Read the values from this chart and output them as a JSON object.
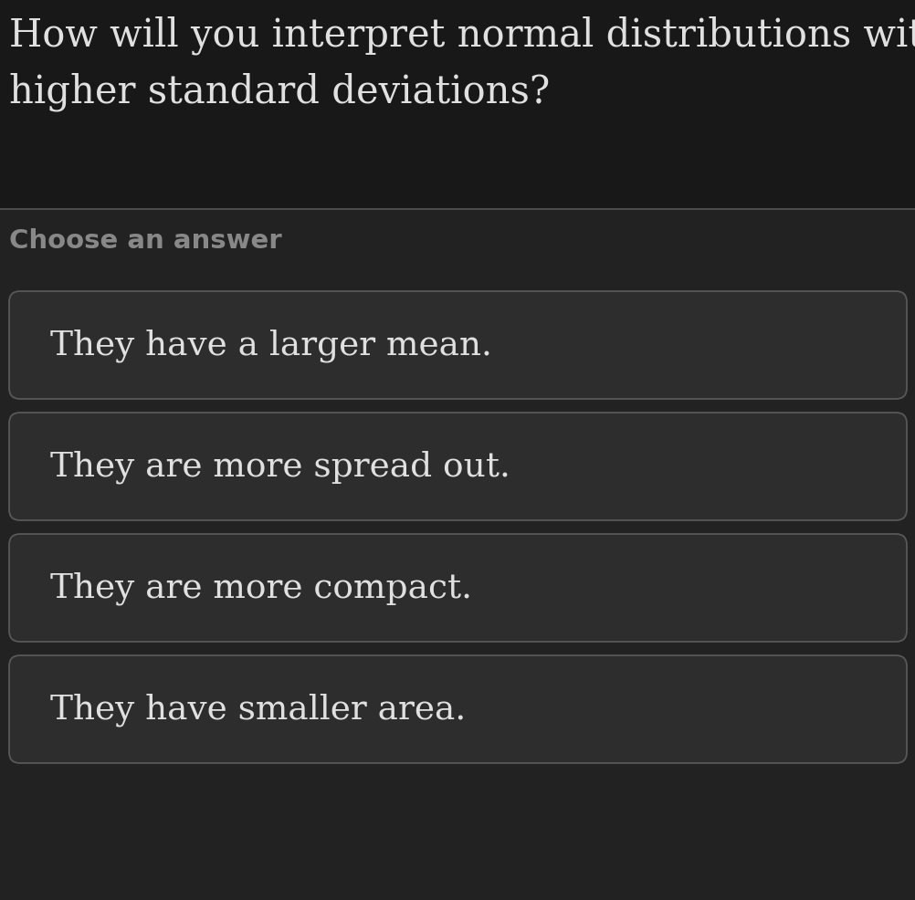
{
  "question_line1": "How will you interpret normal distributions with",
  "question_line2": "higher standard deviations?",
  "choose_label": "Choose an answer",
  "answers": [
    "They have a larger mean.",
    "They are more spread out.",
    "They are more compact.",
    "They have smaller area."
  ],
  "bg_color": "#1c1c1c",
  "question_area_bg": "#181818",
  "answer_area_bg": "#222222",
  "box_bg": "#2d2d2d",
  "box_border": "#585858",
  "question_color": "#e0e0e0",
  "choose_color": "#888888",
  "answer_color": "#e0e0e0",
  "divider_color": "#555555",
  "question_fontsize": 30,
  "choose_fontsize": 21,
  "answer_fontsize": 27
}
